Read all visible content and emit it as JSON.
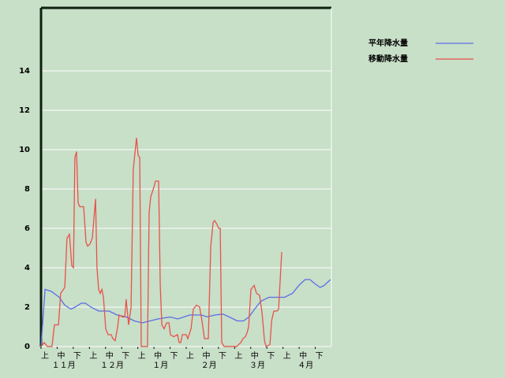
{
  "chart_data": {
    "type": "line",
    "ylim": [
      0,
      17.2
    ],
    "yticks": [
      0,
      2,
      4,
      6,
      8,
      10,
      12,
      14
    ],
    "grid": true,
    "xlim": [
      0,
      180
    ],
    "xticks": [
      {
        "value": 0,
        "label": "上"
      },
      {
        "value": 10,
        "label": "中"
      },
      {
        "value": 20,
        "label": "下"
      },
      {
        "value": 30,
        "label": "上"
      },
      {
        "value": 40,
        "label": "中"
      },
      {
        "value": 50,
        "label": "下"
      },
      {
        "value": 60,
        "label": "上"
      },
      {
        "value": 70,
        "label": "中"
      },
      {
        "value": 80,
        "label": "下"
      },
      {
        "value": 90,
        "label": "上"
      },
      {
        "value": 100,
        "label": "中"
      },
      {
        "value": 110,
        "label": "下"
      },
      {
        "value": 120,
        "label": "上"
      },
      {
        "value": 130,
        "label": "中"
      },
      {
        "value": 140,
        "label": "下"
      },
      {
        "value": 150,
        "label": "上"
      },
      {
        "value": 160,
        "label": "中"
      },
      {
        "value": 170,
        "label": "下"
      }
    ],
    "months": [
      {
        "value": 14,
        "label": "１１月"
      },
      {
        "value": 44,
        "label": "１２月"
      },
      {
        "value": 74,
        "label": "１月"
      },
      {
        "value": 104,
        "label": "２月"
      },
      {
        "value": 134,
        "label": "３月"
      },
      {
        "value": 164,
        "label": "４月"
      }
    ],
    "legend": "top-right",
    "series": [
      {
        "name": "平年降水量",
        "color": "#5a6ee6",
        "x": [
          0,
          2.5,
          6.4,
          11.3,
          14.7,
          18.6,
          21.1,
          25,
          27.5,
          30.9,
          35.8,
          42.2,
          47.1,
          52.9,
          57.8,
          62.7,
          67.6,
          72.5,
          79.9,
          84.8,
          92.2,
          99.5,
          102.9,
          107.8,
          112.7,
          116.7,
          121.6,
          125.5,
          128.9,
          132.4,
          136.3,
          141.2,
          151,
          155.9,
          159.8,
          163.7,
          166.7,
          169.6,
          173,
          175.5,
          179.4
        ],
        "values": [
          0,
          2.9,
          2.8,
          2.5,
          2.1,
          1.9,
          2.0,
          2.2,
          2.2,
          2.0,
          1.8,
          1.8,
          1.6,
          1.5,
          1.3,
          1.2,
          1.3,
          1.4,
          1.5,
          1.4,
          1.6,
          1.6,
          1.5,
          1.6,
          1.65,
          1.5,
          1.3,
          1.3,
          1.5,
          1.9,
          2.3,
          2.5,
          2.5,
          2.7,
          3.1,
          3.4,
          3.4,
          3.2,
          3.0,
          3.1,
          3.4
        ]
      },
      {
        "name": "移動降水量",
        "color": "#e8524a",
        "x": [
          0,
          2.0,
          3.9,
          6.8,
          8.3,
          10.8,
          12.2,
          14.7,
          16.1,
          17.6,
          19.1,
          20.1,
          21.0,
          22.0,
          23.0,
          24.0,
          26.4,
          27.9,
          28.9,
          30.3,
          31.8,
          33.8,
          34.7,
          35.7,
          36.7,
          37.7,
          38.7,
          40.1,
          41.6,
          43.5,
          44.5,
          46.0,
          47.5,
          48.4,
          50.4,
          51.9,
          52.8,
          54.3,
          55.8,
          57.2,
          59.2,
          60.2,
          61.2,
          62.1,
          66.0,
          67.0,
          68.0,
          70.0,
          70.9,
          72.9,
          73.9,
          74.9,
          76.3,
          77.8,
          79.3,
          80.2,
          82.2,
          84.6,
          85.6,
          86.6,
          87.6,
          90.0,
          91.0,
          93.0,
          94.4,
          96.4,
          98.3,
          99.8,
          101.3,
          103.7,
          105.2,
          106.7,
          107.6,
          109.1,
          110.1,
          111.1,
          112.0,
          113.5,
          121.3,
          123.8,
          125.2,
          126.7,
          127.7,
          128.7,
          130.1,
          132.1,
          133.6,
          135.5,
          137.0,
          138.5,
          139.5,
          141.9,
          142.9,
          144.3,
          146.3,
          147.3,
          149.2
        ],
        "values": [
          0,
          0.2,
          0,
          0,
          1.1,
          1.1,
          2.7,
          3.0,
          5.5,
          5.7,
          4.1,
          4.0,
          9.6,
          9.9,
          7.3,
          7.1,
          7.1,
          5.3,
          5.1,
          5.2,
          5.5,
          7.5,
          4.0,
          2.9,
          2.7,
          2.9,
          2.5,
          0.9,
          0.6,
          0.6,
          0.4,
          0.3,
          1.0,
          1.6,
          1.5,
          1.5,
          2.4,
          1.1,
          2.0,
          9.0,
          10.6,
          9.7,
          9.6,
          0,
          0,
          6.8,
          7.6,
          8.1,
          8.4,
          8.4,
          3.1,
          1.1,
          0.9,
          1.2,
          1.2,
          0.6,
          0.5,
          0.6,
          0.2,
          0.2,
          0.6,
          0.6,
          0.4,
          0.9,
          1.9,
          2.1,
          2.0,
          1.3,
          0.4,
          0.4,
          5.1,
          6.3,
          6.4,
          6.2,
          6.0,
          6.0,
          0.2,
          0,
          0,
          0.2,
          0.4,
          0.5,
          0.7,
          1.0,
          2.9,
          3.1,
          2.7,
          2.6,
          1.7,
          0.3,
          0,
          0.1,
          1.3,
          1.8,
          1.8,
          1.9,
          4.8
        ]
      }
    ]
  }
}
